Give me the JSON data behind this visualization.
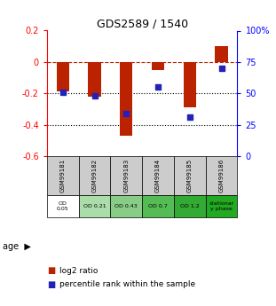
{
  "title": "GDS2589 / 1540",
  "samples": [
    "GSM99181",
    "GSM99182",
    "GSM99183",
    "GSM99184",
    "GSM99185",
    "GSM99186"
  ],
  "log2_ratio": [
    -0.19,
    -0.22,
    -0.47,
    -0.05,
    -0.29,
    0.1
  ],
  "percentile_rank": [
    51,
    48,
    34,
    55,
    31,
    70
  ],
  "age_labels": [
    "OD\n0.05",
    "OD 0.21",
    "OD 0.43",
    "OD 0.7",
    "OD 1.2",
    "stationar\ny phase"
  ],
  "age_colors": [
    "#ffffff",
    "#aaddaa",
    "#88cc88",
    "#55bb55",
    "#33aa33",
    "#22aa22"
  ],
  "bar_color": "#bb2200",
  "dot_color": "#2222bb",
  "ylim_left": [
    -0.6,
    0.2
  ],
  "ylim_right": [
    0,
    100
  ],
  "hline_y": 0.0,
  "dotted_lines": [
    -0.2,
    -0.4
  ],
  "bg_color": "#ffffff",
  "sample_bg": "#cccccc",
  "left_yticks": [
    -0.6,
    -0.4,
    -0.2,
    0.0,
    0.2
  ],
  "left_yticklabels": [
    "-0.6",
    "-0.4",
    "-0.2",
    "0",
    "0.2"
  ],
  "right_yticks": [
    0,
    25,
    50,
    75,
    100
  ],
  "right_yticklabels": [
    "0",
    "25",
    "50",
    "75",
    "100%"
  ]
}
